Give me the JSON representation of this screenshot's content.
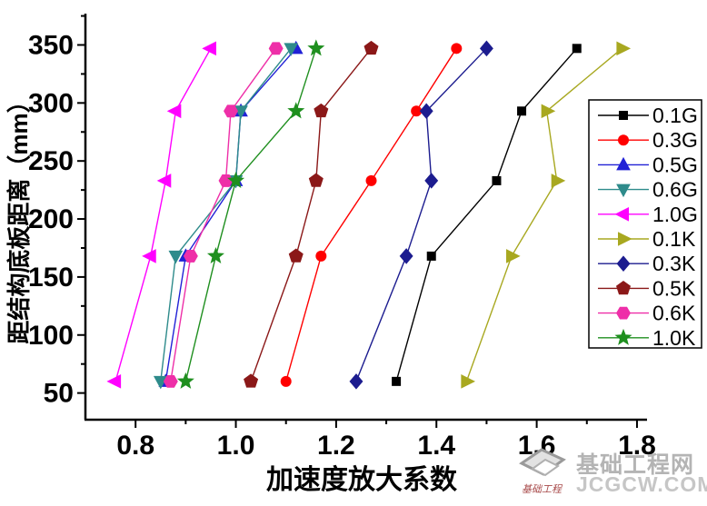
{
  "watermark": {
    "site_name": "基础工程网",
    "site_url": "JCGCW.COM",
    "logo_caption": "基础工程",
    "text_color": "#b4b4b4",
    "url_color": "#c6c6c6",
    "caption_color": "#a84a4a"
  },
  "chart_data": {
    "type": "line",
    "title": "",
    "xlabel": "加速度放大系数",
    "ylabel": "距结构底板距离（mm）",
    "xlim": [
      0.7,
      1.82
    ],
    "ylim": [
      27,
      377
    ],
    "x_major_ticks": [
      0.8,
      1.0,
      1.2,
      1.4,
      1.6,
      1.8
    ],
    "x_minor_ticks": [
      0.9,
      1.1,
      1.3,
      1.5,
      1.7
    ],
    "y_major_ticks": [
      50,
      100,
      150,
      200,
      250,
      300,
      350
    ],
    "y_minor_ticks": [
      75,
      125,
      175,
      225,
      275,
      325,
      375
    ],
    "grid": false,
    "legend_position": "right-inside",
    "y_categories_mm": [
      60,
      168,
      233,
      293,
      347
    ],
    "series": [
      {
        "name": "0.1G",
        "marker": "square",
        "color": "#000000",
        "values": [
          1.32,
          1.39,
          1.52,
          1.57,
          1.68
        ]
      },
      {
        "name": "0.3G",
        "marker": "circle",
        "color": "#ff0000",
        "values": [
          1.1,
          1.17,
          1.27,
          1.36,
          1.44
        ]
      },
      {
        "name": "0.5G",
        "marker": "triangle-up",
        "color": "#2121d6",
        "values": [
          0.86,
          0.9,
          1.0,
          1.01,
          1.12
        ]
      },
      {
        "name": "0.6G",
        "marker": "triangle-down",
        "color": "#2e8b8b",
        "values": [
          0.85,
          0.88,
          1.0,
          1.01,
          1.11
        ]
      },
      {
        "name": "1.0G",
        "marker": "triangle-left",
        "color": "#ff00ff",
        "values": [
          0.76,
          0.83,
          0.86,
          0.88,
          0.95
        ]
      },
      {
        "name": "0.1K",
        "marker": "triangle-right",
        "color": "#a8a820",
        "values": [
          1.46,
          1.55,
          1.64,
          1.62,
          1.77
        ]
      },
      {
        "name": "0.3K",
        "marker": "diamond",
        "color": "#1c1c8f",
        "values": [
          1.24,
          1.34,
          1.39,
          1.38,
          1.5
        ]
      },
      {
        "name": "0.5K",
        "marker": "pentagon",
        "color": "#8b1818",
        "values": [
          1.03,
          1.12,
          1.16,
          1.17,
          1.27
        ]
      },
      {
        "name": "0.6K",
        "marker": "hexagon",
        "color": "#ee2fa8",
        "values": [
          0.87,
          0.91,
          0.98,
          0.99,
          1.08
        ]
      },
      {
        "name": "1.0K",
        "marker": "star",
        "color": "#1f8f1f",
        "values": [
          0.9,
          0.96,
          1.0,
          1.12,
          1.16
        ]
      }
    ]
  }
}
